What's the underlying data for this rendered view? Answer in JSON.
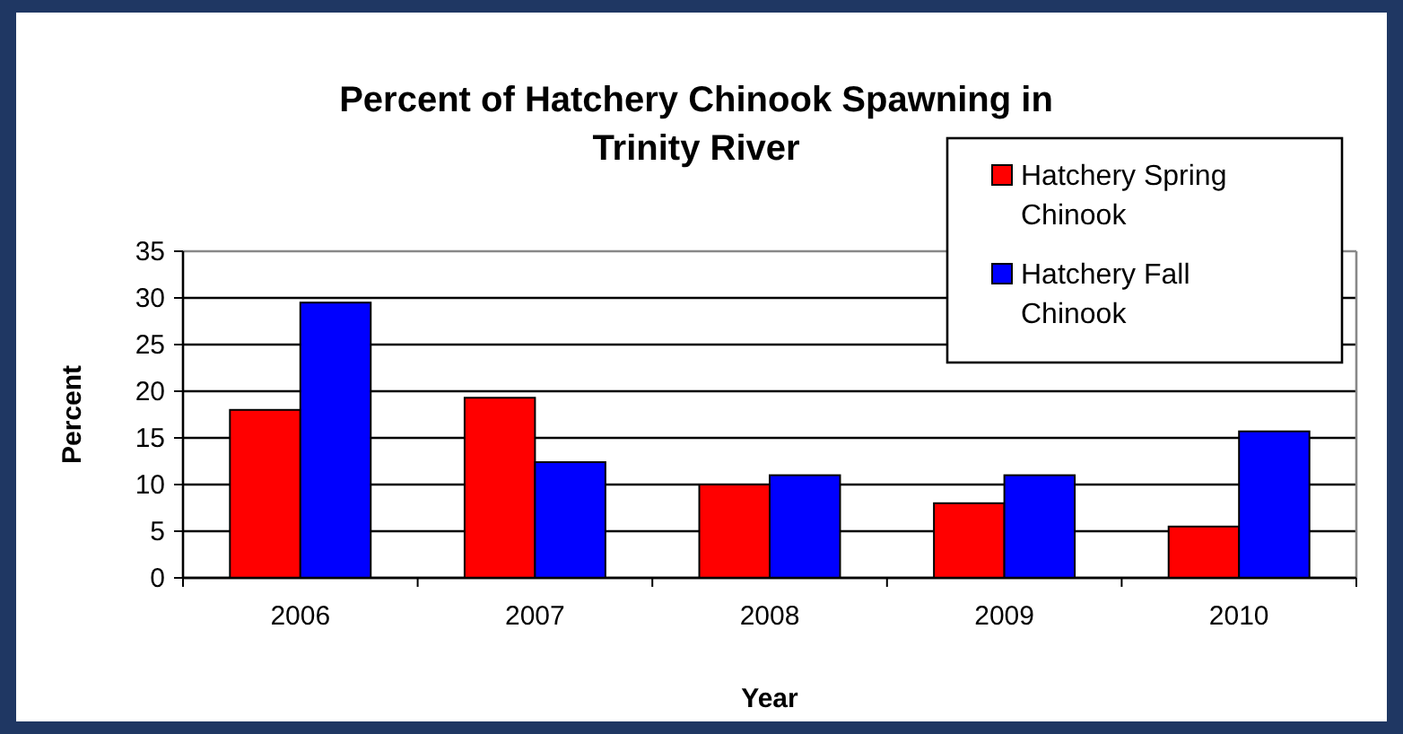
{
  "chart_data": {
    "type": "bar",
    "title": "Percent of Hatchery Chinook Spawning in Trinity River",
    "xlabel": "Year",
    "ylabel": "Percent",
    "categories": [
      "2006",
      "2007",
      "2008",
      "2009",
      "2010"
    ],
    "series": [
      {
        "name": "Hatchery Spring Chinook",
        "color": "#ff0000",
        "values": [
          18,
          19.3,
          10,
          8,
          5.5
        ]
      },
      {
        "name": "Hatchery Fall Chinook",
        "color": "#0000ff",
        "values": [
          29.5,
          12.4,
          11,
          11,
          15.7
        ]
      }
    ],
    "ylim": [
      0,
      35
    ],
    "yticks": [
      0,
      5,
      10,
      15,
      20,
      25,
      30,
      35
    ],
    "grid": "y",
    "legend": "top right"
  }
}
